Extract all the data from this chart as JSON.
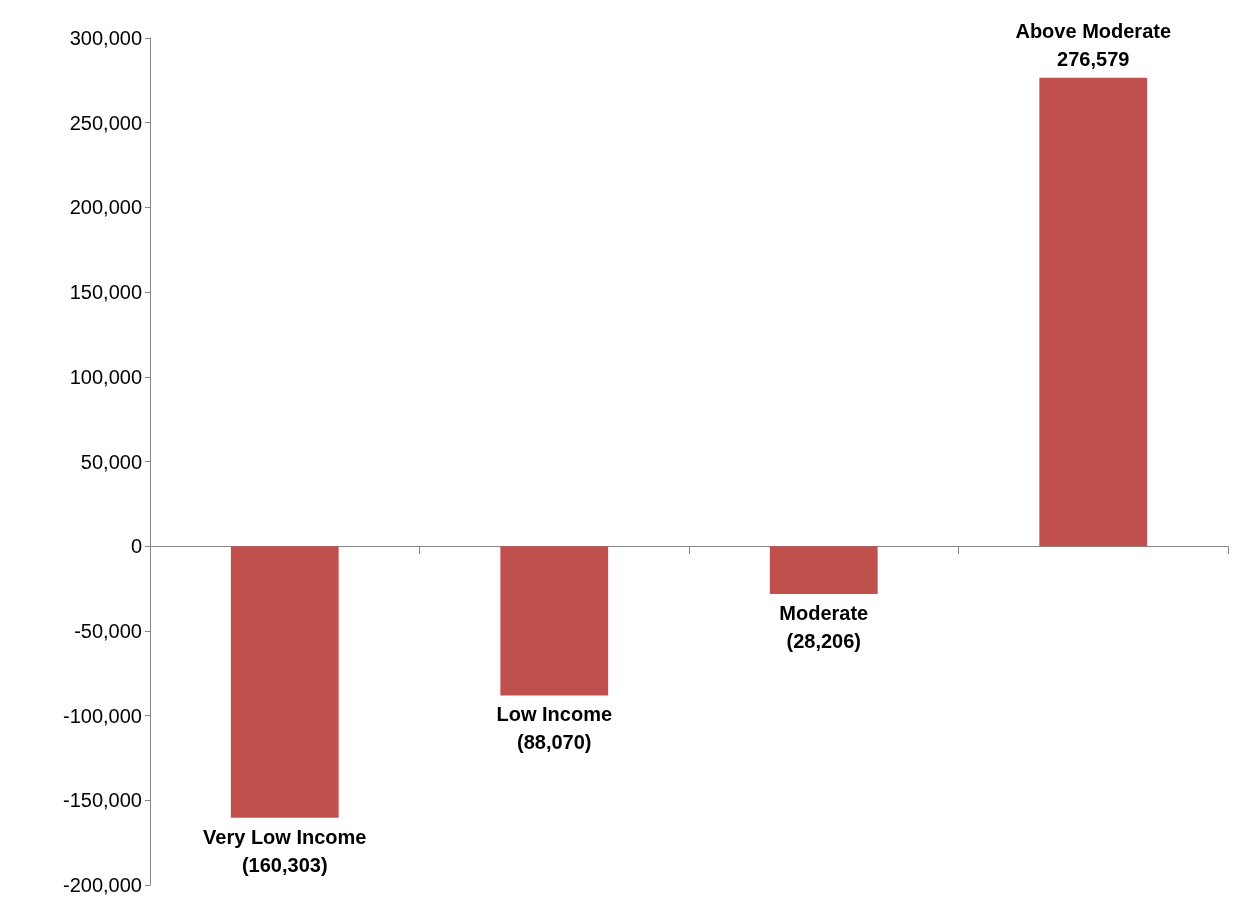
{
  "chart_data": {
    "type": "bar",
    "categories": [
      "Very Low Income",
      "Low Income",
      "Moderate",
      "Above Moderate"
    ],
    "values": [
      -160303,
      -88070,
      -28206,
      276579
    ],
    "value_labels": [
      "(160,303)",
      "(88,070)",
      "(28,206)",
      "276,579"
    ],
    "color": "#c0504d",
    "ylim": [
      -200000,
      300000
    ],
    "yticks": [
      {
        "value": -200000,
        "label": "-200,000"
      },
      {
        "value": -150000,
        "label": "-150,000"
      },
      {
        "value": -100000,
        "label": "-100,000"
      },
      {
        "value": -50000,
        "label": "-50,000"
      },
      0,
      {
        "value": 50000,
        "label": "50,000"
      },
      {
        "value": 100000,
        "label": "100,000"
      },
      {
        "value": 150000,
        "label": "150,000"
      },
      {
        "value": 200000,
        "label": "200,000"
      },
      {
        "value": 250000,
        "label": "250,000"
      },
      {
        "value": 300000,
        "label": "300,000"
      }
    ],
    "tick_labels": "y"
  }
}
